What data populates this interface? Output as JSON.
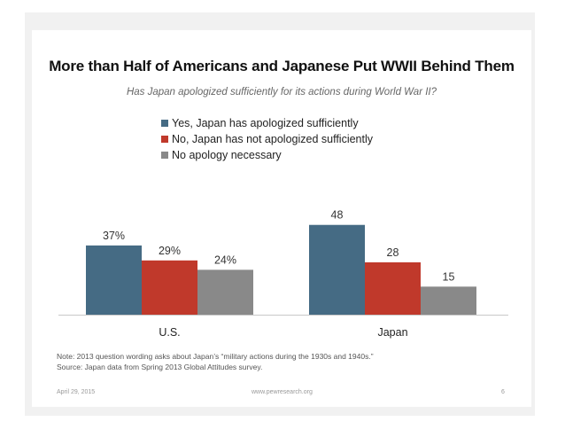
{
  "title": "More than Half of Americans and Japanese Put WWII Behind Them",
  "subtitle": "Has Japan apologized sufficiently for its actions during World War II?",
  "legend": [
    {
      "label": "Yes, Japan has apologized sufficiently",
      "color": "#456b84"
    },
    {
      "label": "No, Japan has not apologized sufficiently",
      "color": "#c0392b"
    },
    {
      "label": "No apology necessary",
      "color": "#898989"
    }
  ],
  "chart_data": {
    "type": "bar",
    "categories": [
      "U.S.",
      "Japan"
    ],
    "series": [
      {
        "name": "Yes, Japan has apologized sufficiently",
        "values": [
          37,
          48
        ],
        "labels": [
          "37%",
          "48"
        ],
        "color": "#456b84"
      },
      {
        "name": "No, Japan has not apologized sufficiently",
        "values": [
          29,
          28
        ],
        "labels": [
          "29%",
          "28"
        ],
        "color": "#c0392b"
      },
      {
        "name": "No apology necessary",
        "values": [
          24,
          15
        ],
        "labels": [
          "24%",
          "15"
        ],
        "color": "#898989"
      }
    ],
    "ylim": [
      0,
      50
    ],
    "grid": false,
    "legend_position": "top-left"
  },
  "note": "Note: 2013 question wording asks about Japan’s “military actions during the 1930s and 1940s.”",
  "source": "Source: Japan data from Spring 2013 Global Attitudes survey.",
  "footer": {
    "date": "April 29, 2015",
    "url": "www.pewresearch.org",
    "page": "6"
  }
}
